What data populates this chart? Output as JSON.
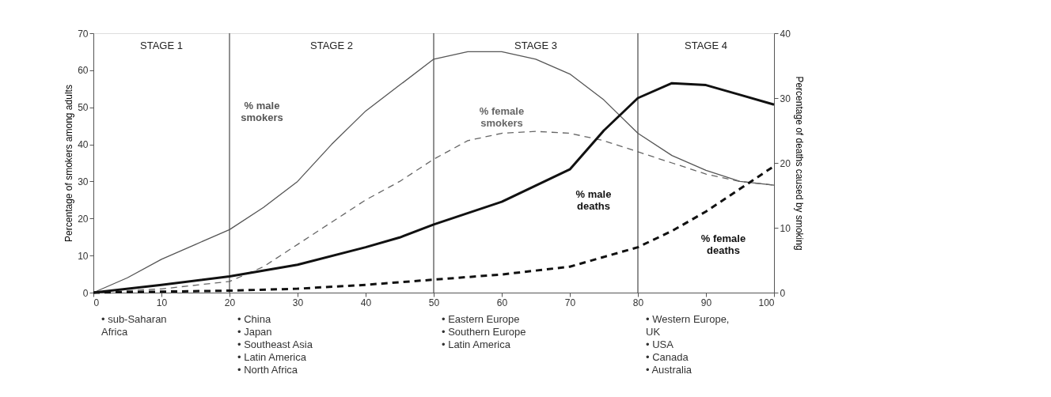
{
  "chart_data": {
    "type": "line",
    "ylabel": "Percentage of smokers among adults",
    "y2label": "Percentage of deaths caused by smoking",
    "xlim": [
      0,
      100
    ],
    "xticks": [
      0,
      10,
      20,
      30,
      40,
      50,
      60,
      70,
      80,
      90,
      100
    ],
    "ylim": [
      0,
      70
    ],
    "yticks": [
      0,
      10,
      20,
      30,
      40,
      50,
      60,
      70
    ],
    "y2lim": [
      0,
      40
    ],
    "y2ticks": [
      0,
      10,
      20,
      30,
      40
    ],
    "grid": false,
    "marker": "none",
    "series": [
      {
        "name": "% male\nsmokers",
        "color": "#555555",
        "line_style": "solid",
        "x": [
          0,
          5,
          10,
          15,
          20,
          25,
          30,
          35,
          40,
          45,
          50,
          55,
          60,
          65,
          70,
          75,
          80,
          85,
          90,
          95,
          100
        ],
        "values": [
          0,
          4,
          9,
          13,
          17,
          23,
          30,
          40,
          49,
          56,
          63,
          65,
          65,
          63,
          59,
          52,
          43,
          37,
          33,
          30,
          29
        ]
      },
      {
        "name": "% female\nsmokers",
        "color": "#666666",
        "line_style": "dashed",
        "x": [
          0,
          10,
          20,
          25,
          30,
          35,
          40,
          45,
          50,
          55,
          60,
          65,
          70,
          75,
          80,
          85,
          90,
          95,
          100
        ],
        "values": [
          0,
          1,
          3,
          7,
          13,
          19,
          25,
          30,
          36,
          41,
          43,
          43.5,
          43,
          41,
          38,
          35,
          32,
          30,
          29
        ]
      },
      {
        "name": "% male\ndeaths",
        "color": "#111111",
        "line_style": "solid",
        "axis": "y2",
        "x": [
          0,
          10,
          20,
          30,
          40,
          45,
          50,
          60,
          70,
          75,
          80,
          85,
          90,
          95,
          100
        ],
        "values": [
          0,
          1.2,
          2.5,
          4.3,
          7,
          8.5,
          10.5,
          14,
          19,
          25,
          30,
          32.3,
          32,
          30.5,
          29
        ]
      },
      {
        "name": "% female\ndeaths",
        "color": "#111111",
        "line_style": "dashed",
        "axis": "y2",
        "x": [
          0,
          20,
          30,
          40,
          50,
          60,
          70,
          80,
          85,
          90,
          95,
          100
        ],
        "values": [
          0,
          0.3,
          0.6,
          1.2,
          2,
          2.8,
          4,
          7,
          9.5,
          12.5,
          16,
          19.5
        ]
      }
    ],
    "ref_lines": [
      {
        "axis": "x",
        "value": 20,
        "color": "#555555"
      },
      {
        "axis": "x",
        "value": 50,
        "color": "#555555"
      },
      {
        "axis": "x",
        "value": 80,
        "color": "#555555"
      }
    ],
    "annotations": [
      "STAGE 1",
      "STAGE 2",
      "STAGE 3",
      "STAGE 4",
      "• sub-Saharan\n  Africa",
      "• China\n• Japan\n• Southeast Asia\n• Latin America\n• North Africa",
      "• Eastern Europe\n• Southern Europe\n• Latin America",
      "• Western Europe,\n  UK\n• USA\n• Canada\n• Australia"
    ]
  }
}
